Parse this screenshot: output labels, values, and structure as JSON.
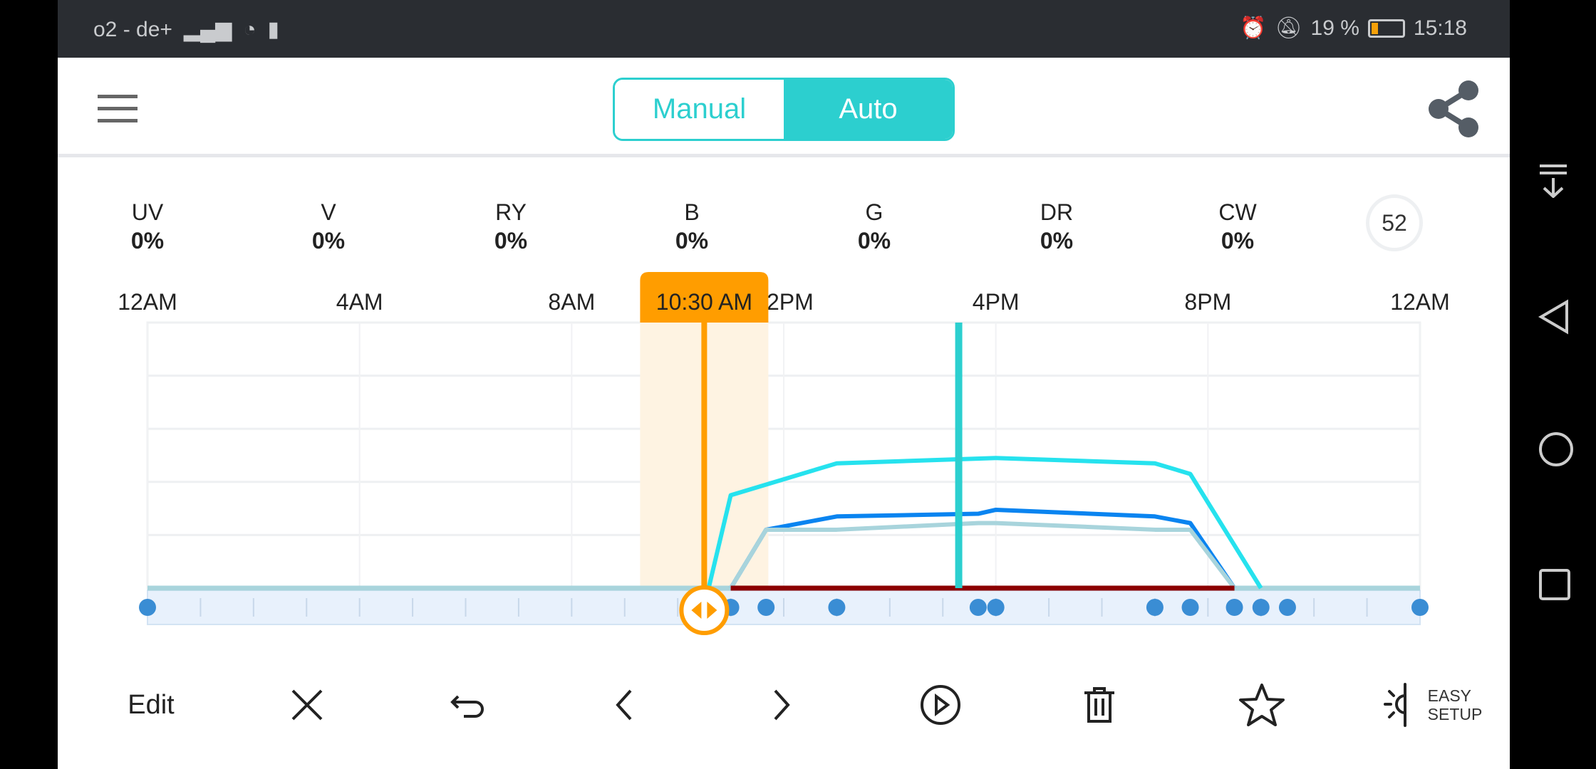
{
  "status_bar": {
    "carrier": "o2 - de+",
    "battery": "19 %",
    "battery_level": 0.19,
    "time": "15:18"
  },
  "header": {
    "mode_manual": "Manual",
    "mode_auto": "Auto",
    "active_mode": "Auto"
  },
  "channels": [
    {
      "name": "UV",
      "value": "0%"
    },
    {
      "name": "V",
      "value": "0%"
    },
    {
      "name": "RY",
      "value": "0%"
    },
    {
      "name": "B",
      "value": "0%"
    },
    {
      "name": "G",
      "value": "0%"
    },
    {
      "name": "DR",
      "value": "0%"
    },
    {
      "name": "CW",
      "value": "0%"
    }
  ],
  "badge": "52",
  "cursor_label": "10:30 AM",
  "toolbar": {
    "edit": "Edit",
    "easy_setup_1": "EASY",
    "easy_setup_2": "SETUP"
  },
  "colors": {
    "accent": "#2ccfcf",
    "cursor": "#ff9d00",
    "point": "#3a8dd4"
  },
  "chart_data": {
    "type": "line",
    "x_ticks": [
      "12AM",
      "4AM",
      "8AM",
      "12PM",
      "4PM",
      "8PM",
      "12AM"
    ],
    "xlim": [
      "00:00",
      "24:00"
    ],
    "ylim": [
      0,
      100
    ],
    "grid": true,
    "cursor_time": "10:30",
    "current_time": "15:18",
    "series": [
      {
        "color": "#26e2ee",
        "points": [
          [
            "10:35",
            0
          ],
          [
            "11:00",
            35
          ],
          [
            "13:00",
            47
          ],
          [
            "16:00",
            49
          ],
          [
            "19:00",
            47
          ],
          [
            "19:40",
            43
          ],
          [
            "21:00",
            0
          ]
        ]
      },
      {
        "color": "#0a84f0",
        "points": [
          [
            "11:00",
            0
          ],
          [
            "11:40",
            22
          ],
          [
            "13:00",
            27
          ],
          [
            "15:40",
            28
          ],
          [
            "16:00",
            29.5
          ],
          [
            "19:00",
            27
          ],
          [
            "19:40",
            24.5
          ],
          [
            "20:30",
            0
          ]
        ]
      },
      {
        "color": "#a8d4dc",
        "points": [
          [
            "11:00",
            0
          ],
          [
            "11:40",
            22
          ],
          [
            "13:00",
            22
          ],
          [
            "15:40",
            24.5
          ],
          [
            "16:00",
            24.5
          ],
          [
            "19:00",
            22
          ],
          [
            "19:40",
            22
          ],
          [
            "20:30",
            0
          ]
        ]
      },
      {
        "color": "#8b0000",
        "points": [
          [
            "11:00",
            0
          ],
          [
            "20:30",
            0
          ]
        ]
      }
    ],
    "keyframes": [
      "00:00",
      "10:30",
      "11:00",
      "11:40",
      "13:00",
      "15:40",
      "16:00",
      "19:00",
      "19:40",
      "20:30",
      "21:00",
      "21:30",
      "24:00"
    ]
  }
}
